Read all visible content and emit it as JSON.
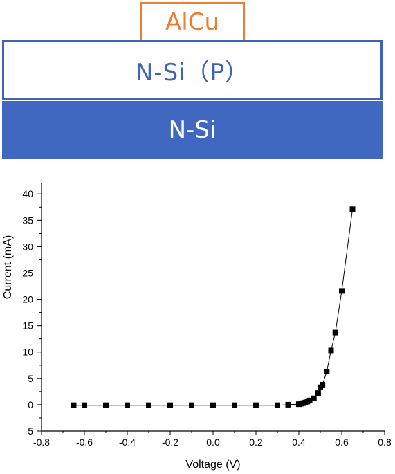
{
  "structure": {
    "top_layer": {
      "label": "AlCu",
      "color": "#ED7D31"
    },
    "middle_layer": {
      "label": "N-Si（P）",
      "color": "#3F64B4"
    },
    "bottom_layer": {
      "label": "N-Si",
      "color": "#4068C1"
    }
  },
  "chart_data": {
    "type": "line",
    "xlabel": "Voltage (V)",
    "ylabel": "Current (mA)",
    "xlim": [
      -0.8,
      0.8
    ],
    "ylim": [
      -5,
      42
    ],
    "x_ticks": [
      -0.8,
      -0.6,
      -0.4,
      -0.2,
      0.0,
      0.2,
      0.4,
      0.6,
      0.8
    ],
    "x_tick_labels": [
      "-0.8",
      "-0.6",
      "-0.4",
      "-0.2",
      "0.0",
      "0.2",
      "0.4",
      "0.6",
      "0.8"
    ],
    "y_ticks": [
      -5,
      0,
      5,
      10,
      15,
      20,
      25,
      30,
      35,
      40
    ],
    "y_tick_labels": [
      "-5",
      "0",
      "5",
      "10",
      "15",
      "20",
      "25",
      "30",
      "35",
      "40"
    ],
    "grid": false,
    "marker": "square",
    "series": [
      {
        "x": [
          -0.65,
          -0.6,
          -0.5,
          -0.4,
          -0.3,
          -0.2,
          -0.1,
          0.0,
          0.1,
          0.2,
          0.3,
          0.35,
          0.4,
          0.41,
          0.42,
          0.43,
          0.44,
          0.45,
          0.47,
          0.49,
          0.5,
          0.51,
          0.53,
          0.55,
          0.57,
          0.6,
          0.65
        ],
        "y": [
          -0.1,
          -0.1,
          -0.1,
          -0.1,
          -0.1,
          -0.1,
          -0.1,
          -0.1,
          -0.1,
          -0.1,
          -0.1,
          0.0,
          0.1,
          0.2,
          0.3,
          0.4,
          0.6,
          0.8,
          1.2,
          2.2,
          3.3,
          3.8,
          6.3,
          10.3,
          13.7,
          21.6,
          37.1
        ]
      }
    ]
  }
}
